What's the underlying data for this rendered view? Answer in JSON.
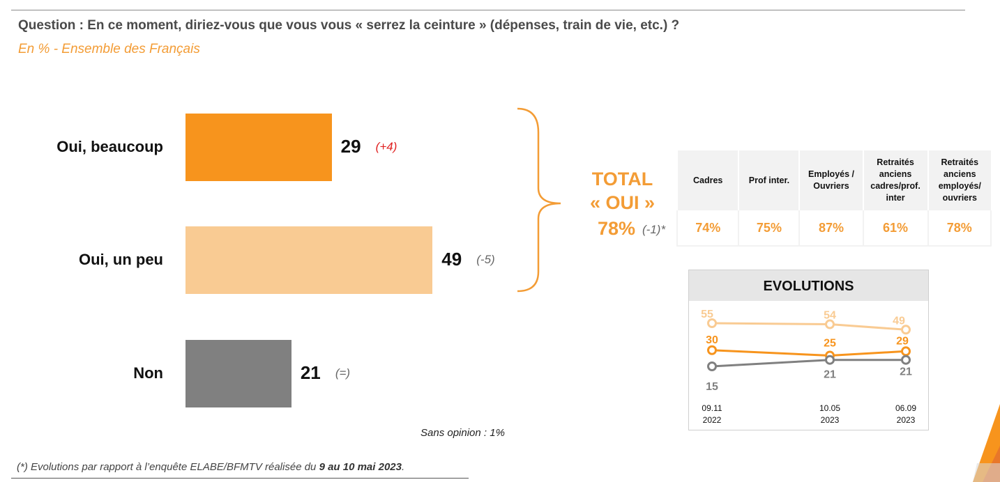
{
  "question": "Question : En ce moment, diriez-vous que vous vous « serrez la ceinture » (dépenses, train de vie, etc.) ?",
  "subtitle": "En % - Ensemble des Français",
  "colors": {
    "dark_orange": "#f7941d",
    "light_orange": "#f9cb93",
    "grey": "#808080",
    "accent_text": "#f39c35",
    "delta_positive": "#e02020"
  },
  "chart_data": [
    {
      "type": "bar",
      "orientation": "horizontal",
      "categories": [
        "Oui, beaucoup",
        "Oui, un peu",
        "Non"
      ],
      "values": [
        29,
        49,
        21
      ],
      "changes": [
        "(+4)",
        "(-5)",
        "(=)"
      ],
      "colors": [
        "#f7941d",
        "#f9cb93",
        "#808080"
      ],
      "xlim": [
        0,
        100
      ],
      "note": "Sans opinion : 1%"
    },
    {
      "type": "table",
      "title_lines": [
        "TOTAL",
        "« OUI »"
      ],
      "total_value": "78%",
      "total_change": "(-1)*",
      "columns": [
        "Cadres",
        "Prof inter.",
        "Employés / Ouvriers",
        "Retraités anciens cadres/prof. inter",
        "Retraités anciens employés/ ouvriers"
      ],
      "values": [
        "74%",
        "75%",
        "87%",
        "61%",
        "78%"
      ]
    },
    {
      "type": "line",
      "title": "EVOLUTIONS",
      "x": [
        "09.11 2022",
        "10.05 2023",
        "06.09 2023"
      ],
      "x_labels": [
        [
          "09.11",
          "2022"
        ],
        [
          "10.05",
          "2023"
        ],
        [
          "06.09",
          "2023"
        ]
      ],
      "series": [
        {
          "values": [
            55,
            54,
            49
          ],
          "color": "#f9cb93"
        },
        {
          "values": [
            30,
            25,
            29
          ],
          "color": "#f7941d"
        },
        {
          "values": [
            15,
            21,
            21
          ],
          "color": "#808080"
        }
      ]
    }
  ],
  "footnote": {
    "prefix": "(*) Evolutions par rapport à l’enquête ELABE/BFMTV réalisée du ",
    "bold": "9 au 10 mai 2023",
    "suffix": "."
  }
}
